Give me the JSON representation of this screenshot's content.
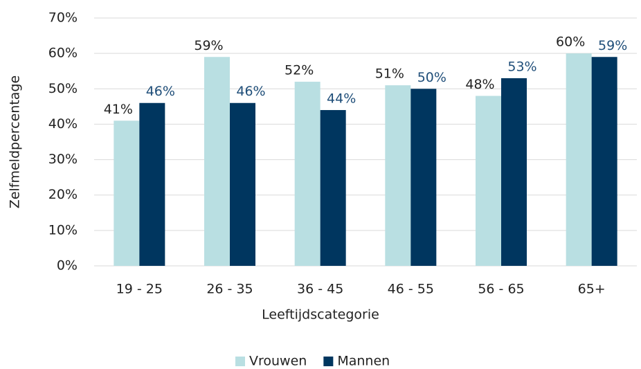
{
  "chart_data": {
    "type": "bar",
    "x_label": "Leeftijdscategorie",
    "y_label": "Zelfmeldpercentage",
    "categories": [
      "19 - 25",
      "26 - 35",
      "36 - 45",
      "46 - 55",
      "56 - 65",
      "65+"
    ],
    "series": [
      {
        "name": "Vrouwen",
        "color": "#b9dfe2",
        "label_color": "#222222",
        "values": [
          41,
          59,
          52,
          51,
          48,
          60
        ],
        "value_labels": [
          "41%",
          "59%",
          "52%",
          "51%",
          "48%",
          "60%"
        ]
      },
      {
        "name": "Mannen",
        "color": "#00365f",
        "label_color": "#1f4e79",
        "values": [
          46,
          46,
          44,
          50,
          53,
          59
        ],
        "value_labels": [
          "46%",
          "46%",
          "44%",
          "50%",
          "53%",
          "59%"
        ]
      }
    ],
    "ylim": [
      0,
      70
    ],
    "yticks": [
      {
        "value": 0,
        "label": "0%"
      },
      {
        "value": 10,
        "label": "10%"
      },
      {
        "value": 20,
        "label": "20%"
      },
      {
        "value": 30,
        "label": "30%"
      },
      {
        "value": 40,
        "label": "40%"
      },
      {
        "value": 50,
        "label": "50%"
      },
      {
        "value": 60,
        "label": "60%"
      },
      {
        "value": 70,
        "label": "70%"
      }
    ],
    "grid": true,
    "legend": "bottom"
  }
}
